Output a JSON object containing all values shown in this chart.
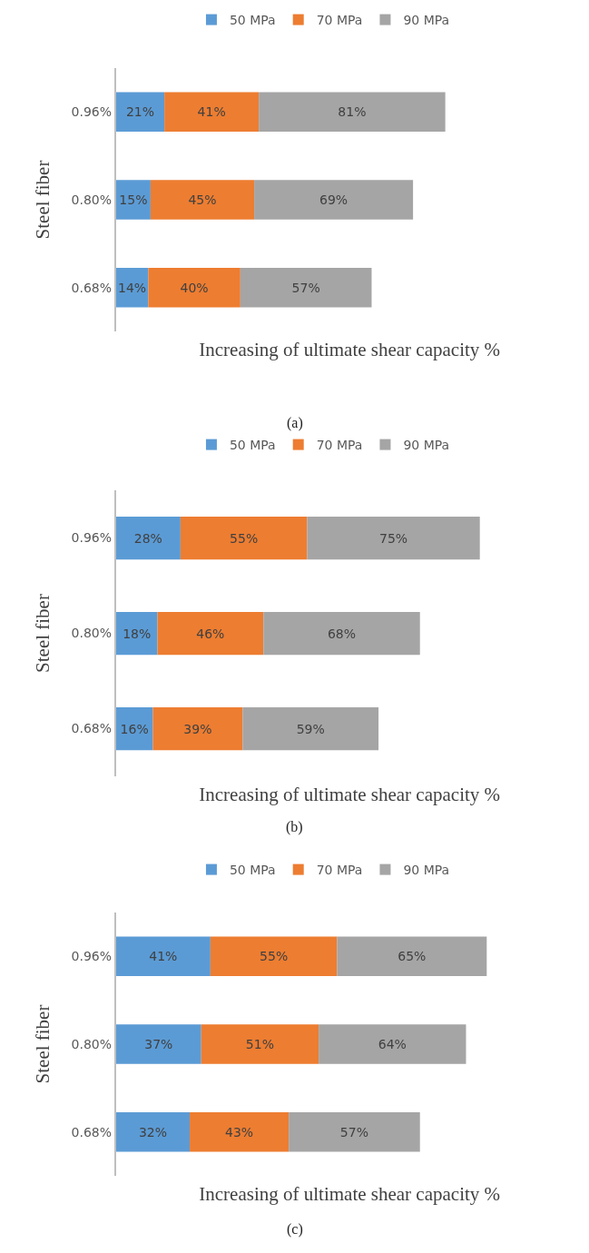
{
  "chart_data": [
    {
      "type": "bar",
      "orientation": "horizontal",
      "stacked": true,
      "categories": [
        "0.96%",
        "0.80%",
        "0.68%"
      ],
      "ylabel": "Steel fiber",
      "xlabel": "Increasing of ultimate shear capacity %",
      "annotations": [
        "(a)"
      ],
      "legend": "top",
      "tick_labels": "y",
      "series": [
        {
          "name": "50 MPa",
          "color": "#5b9bd5",
          "values": [
            21,
            15,
            14
          ],
          "value_labels": [
            "21%",
            "15%",
            "14%"
          ]
        },
        {
          "name": "70 MPa",
          "color": "#ed7d31",
          "values": [
            41,
            45,
            40
          ],
          "value_labels": [
            "41%",
            "45%",
            "40%"
          ]
        },
        {
          "name": "90 MPa",
          "color": "#a5a5a5",
          "values": [
            81,
            69,
            57
          ],
          "value_labels": [
            "81%",
            "69%",
            "57%"
          ]
        }
      ]
    },
    {
      "type": "bar",
      "orientation": "horizontal",
      "stacked": true,
      "categories": [
        "0.96%",
        "0.80%",
        "0.68%"
      ],
      "ylabel": "Steel fiber",
      "xlabel": "Increasing of ultimate shear capacity %",
      "annotations": [
        "(b)"
      ],
      "legend": "top",
      "tick_labels": "y",
      "series": [
        {
          "name": "50 MPa",
          "color": "#5b9bd5",
          "values": [
            28,
            18,
            16
          ],
          "value_labels": [
            "28%",
            "18%",
            "16%"
          ]
        },
        {
          "name": "70 MPa",
          "color": "#ed7d31",
          "values": [
            55,
            46,
            39
          ],
          "value_labels": [
            "55%",
            "46%",
            "39%"
          ]
        },
        {
          "name": "90 MPa",
          "color": "#a5a5a5",
          "values": [
            75,
            68,
            59
          ],
          "value_labels": [
            "75%",
            "68%",
            "59%"
          ]
        }
      ]
    },
    {
      "type": "bar",
      "orientation": "horizontal",
      "stacked": true,
      "categories": [
        "0.96%",
        "0.80%",
        "0.68%"
      ],
      "ylabel": "Steel fiber",
      "xlabel": "Increasing of ultimate shear capacity %",
      "annotations": [
        "(c)"
      ],
      "legend": "top",
      "tick_labels": "y",
      "series": [
        {
          "name": "50 MPa",
          "color": "#5b9bd5",
          "values": [
            41,
            37,
            32
          ],
          "value_labels": [
            "41%",
            "37%",
            "32%"
          ]
        },
        {
          "name": "70 MPa",
          "color": "#ed7d31",
          "values": [
            55,
            51,
            43
          ],
          "value_labels": [
            "55%",
            "51%",
            "43%"
          ]
        },
        {
          "name": "90 MPa",
          "color": "#a5a5a5",
          "values": [
            65,
            64,
            57
          ],
          "value_labels": [
            "65%",
            "64%",
            "57%"
          ]
        }
      ]
    }
  ]
}
